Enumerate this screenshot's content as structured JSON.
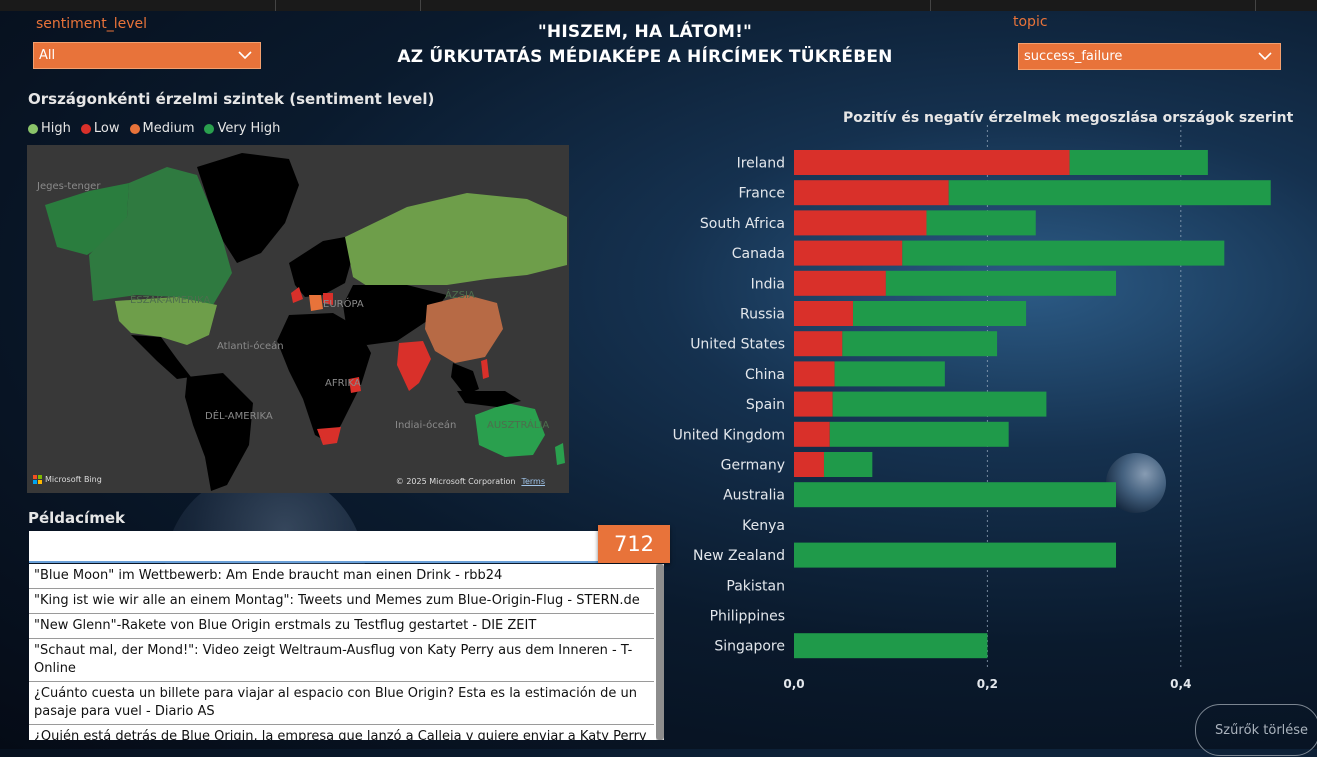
{
  "filters": {
    "sentiment": {
      "label": "sentiment_level",
      "value": "All"
    },
    "topic": {
      "label": "topic",
      "value": "success_failure"
    }
  },
  "title": {
    "line1": "\"HISZEM, HA LÁTOM!\"",
    "line2": "AZ ŰRKUTATÁS MÉDIAKÉPE A HÍRCÍMEK TÜKRÉBEN"
  },
  "map": {
    "title": "Országonkénti érzelmi szintek (sentiment level)",
    "legend": [
      {
        "label": "High",
        "color": "#8bc46a"
      },
      {
        "label": "Low",
        "color": "#d9302a"
      },
      {
        "label": "Medium",
        "color": "#e8733a"
      },
      {
        "label": "Very High",
        "color": "#2aa04e"
      }
    ],
    "labels": {
      "arctic": "Jeges-tenger",
      "north_america": "ÉSZAK-AMERIKA",
      "europe": "EURÓPA",
      "asia": "ÁZSIA",
      "atlantic": "Atlanti-óceán",
      "africa": "AFRIKA",
      "south_america": "DÉL-AMERIKA",
      "indian_ocean": "Indiai-óceán",
      "australia": "AUSZTRÁLIA"
    },
    "attribution": "Microsoft Bing",
    "copyright": "© 2025 Microsoft Corporation",
    "terms": "Terms",
    "colors": {
      "water": "#383838",
      "nodata": "#000000"
    }
  },
  "headlines": {
    "title": "Példacímek",
    "count": "712",
    "items": [
      "\"Blue Moon\" im Wettbewerb: Am Ende braucht man einen Drink - rbb24",
      "\"King ist wie wir alle an einem Montag\": Tweets und Memes zum Blue-Origin-Flug - STERN.de",
      "\"New Glenn\"-Rakete von Blue Origin erstmals zu Testflug gestartet - DIE ZEIT",
      "\"Schaut mal, der Mond!\": Video zeigt Weltraum-Ausflug von Katy Perry aus dem Inneren - T-Online",
      "¿Cuánto cuesta un billete para viajar al espacio con Blue Origin? Esta es la estimación de un pasaje para vuel - Diario AS",
      "¿Quién está detrás de Blue Origin, la empresa que lanzó a Calleja y quiere enviar a Katy Perry al espacio? - Cinco Días"
    ]
  },
  "chart_data": {
    "type": "bar",
    "orientation": "horizontal",
    "stacked": true,
    "title": "Pozitív és negatív érzelmek megoszlása országok szerint",
    "categories": [
      "Ireland",
      "France",
      "South Africa",
      "Canada",
      "India",
      "Russia",
      "United States",
      "China",
      "Spain",
      "United Kingdom",
      "Germany",
      "Australia",
      "Kenya",
      "New Zealand",
      "Pakistan",
      "Philippines",
      "Singapore"
    ],
    "series": [
      {
        "color": "#d9302a",
        "values": [
          0.285,
          0.16,
          0.137,
          0.112,
          0.095,
          0.061,
          0.05,
          0.042,
          0.04,
          0.037,
          0.031,
          0,
          0,
          0,
          0,
          0,
          0
        ]
      },
      {
        "color": "#1f9a4a",
        "values": [
          0.143,
          0.333,
          0.113,
          0.333,
          0.238,
          0.179,
          0.16,
          0.114,
          0.221,
          0.185,
          0.05,
          0.333,
          0,
          0.333,
          0,
          0,
          0.2
        ]
      }
    ],
    "xticks": [
      "0,0",
      "0,2",
      "0,4"
    ],
    "xlim": [
      0,
      0.5
    ],
    "grid": true
  },
  "buttons": {
    "clear_filters": "Szűrők törlése"
  }
}
